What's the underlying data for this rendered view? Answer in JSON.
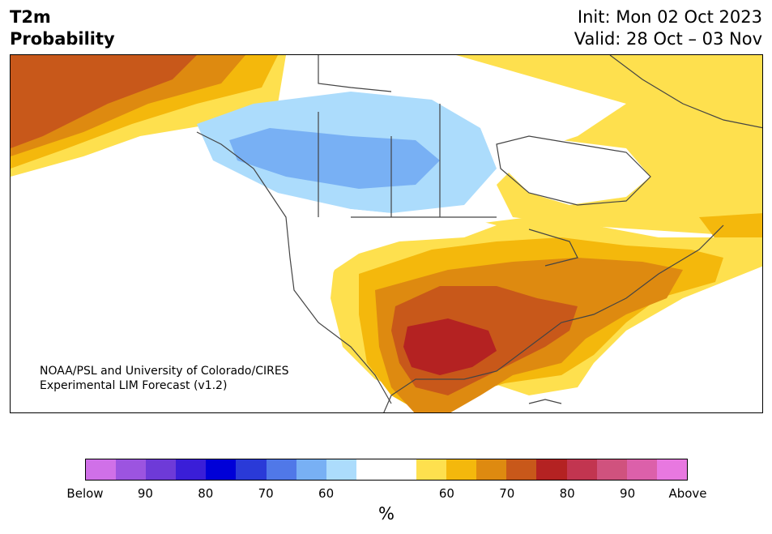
{
  "title": {
    "left": [
      "T2m",
      "Probability"
    ],
    "right": [
      "Init: Mon 02 Oct 2023",
      "Valid: 28 Oct – 03 Nov"
    ]
  },
  "credit": [
    "NOAA/PSL and University of Colorado/CIRES",
    "Experimental LIM Forecast (v1.2)"
  ],
  "colorbar": {
    "colors": [
      "#d070e8",
      "#9c54e0",
      "#6e3ad8",
      "#3a1ed8",
      "#0000d8",
      "#2a3ad8",
      "#5078e8",
      "#78b0f4",
      "#acdcfc",
      "#ffffff",
      "#ffffff",
      "#fee04e",
      "#f4b80c",
      "#de8a10",
      "#c8581a",
      "#b42222",
      "#c23550",
      "#d0527e",
      "#dc60aa",
      "#e878e0"
    ],
    "tick_labels": [
      "Below",
      "90",
      "80",
      "70",
      "60",
      "60",
      "70",
      "80",
      "90",
      "Above"
    ],
    "unit": "%"
  },
  "map_colors": {
    "cold60": "#acdcfc",
    "cold70": "#78b0f4",
    "warm60": "#fee04e",
    "warm65": "#f4b80c",
    "warm70": "#de8a10",
    "warm75": "#c8581a",
    "warm80": "#b42222"
  }
}
